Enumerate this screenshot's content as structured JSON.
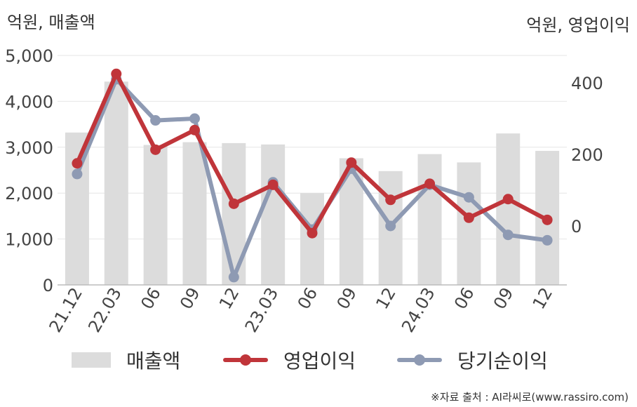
{
  "chart_data": {
    "type": "bar+line",
    "left_axis_label": "억원, 매출액",
    "right_axis_label": "억원, 영업이익",
    "categories": [
      "21.12",
      "22.03",
      "06",
      "09",
      "12",
      "23.03",
      "06",
      "09",
      "12",
      "24.03",
      "06",
      "09",
      "12"
    ],
    "left_ylim": [
      0,
      5000
    ],
    "left_ticks": [
      "0",
      "1,000",
      "2,000",
      "3,000",
      "4,000",
      "5,000"
    ],
    "right_ticks": [
      "0",
      "200",
      "400"
    ],
    "series": [
      {
        "name": "매출액",
        "type": "bar",
        "axis": "left",
        "color": "#dcdcdc",
        "values": [
          3320,
          4430,
          3050,
          3110,
          3090,
          3060,
          2000,
          2760,
          2480,
          2850,
          2670,
          3300,
          2920
        ]
      },
      {
        "name": "영업이익",
        "type": "line",
        "axis": "right",
        "color": "#c0353a",
        "values": [
          175,
          425,
          213,
          268,
          62,
          115,
          -20,
          177,
          73,
          118,
          23,
          75,
          17
        ]
      },
      {
        "name": "당기순이익",
        "type": "line",
        "axis": "right",
        "color": "#8e9ab3",
        "values": [
          145,
          410,
          295,
          300,
          -143,
          122,
          -10,
          160,
          0,
          115,
          80,
          -25,
          -40
        ]
      }
    ]
  },
  "legend": {
    "revenue": "매출액",
    "operating_profit": "영업이익",
    "net_income": "당기순이익"
  },
  "source": "※자료 출처 : AI라씨로(www.rassiro.com)"
}
